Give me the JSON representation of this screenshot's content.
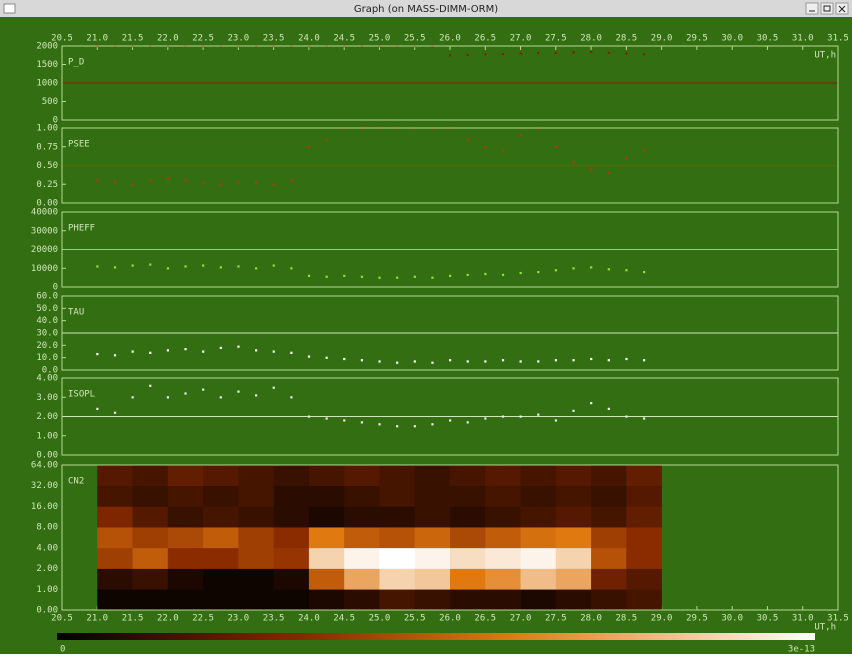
{
  "window": {
    "title": "Graph (on MASS-DIMM-ORM)"
  },
  "x_axis": {
    "label": "UT,h",
    "xlim": [
      20.5,
      31.5
    ],
    "xticks": [
      20.5,
      {
        "value": 21,
        "label": "21.0"
      },
      21.5,
      {
        "value": 22,
        "label": "22.0"
      },
      22.5,
      {
        "value": 23,
        "label": "23.0"
      },
      23.5,
      {
        "value": 24,
        "label": "24.0"
      },
      24.5,
      {
        "value": 25,
        "label": "25.0"
      },
      25.5,
      {
        "value": 26,
        "label": "26.0"
      },
      26.5,
      {
        "value": 27,
        "label": "27.0"
      },
      27.5,
      {
        "value": 28,
        "label": "28.0"
      },
      28.5,
      {
        "value": 29,
        "label": "29.0"
      },
      29.5,
      {
        "value": 30,
        "label": "30.0"
      },
      30.5,
      {
        "value": 31,
        "label": "31.0"
      },
      31.5
    ]
  },
  "chart_data": [
    {
      "type": "scatter",
      "name": "P_D",
      "color": "#8b1c00",
      "reference": 1000,
      "ylim": [
        0,
        2000
      ],
      "yticks": [
        0,
        500,
        1000,
        1500,
        2000
      ],
      "x": [
        21.0,
        21.25,
        21.5,
        21.75,
        22.0,
        22.25,
        22.5,
        22.75,
        23.0,
        23.25,
        23.5,
        23.75,
        24.0,
        24.25,
        24.5,
        24.75,
        25.0,
        25.25,
        25.5,
        25.75,
        26.0,
        26.25,
        26.5,
        26.75,
        27.0,
        27.25,
        27.5,
        27.75,
        28.0,
        28.25,
        28.5,
        28.75
      ],
      "values": [
        2000,
        2000,
        2000,
        2000,
        2000,
        2000,
        2000,
        2000,
        2000,
        2000,
        2000,
        2000,
        2000,
        2000,
        2000,
        2000,
        2000,
        2000,
        2000,
        2000,
        1750,
        1760,
        1780,
        1790,
        1800,
        1810,
        1820,
        1830,
        1840,
        1820,
        1800,
        1780
      ]
    },
    {
      "type": "scatter",
      "name": "PSEE",
      "color": "#c03400",
      "reference": 0.5,
      "ylim": [
        0,
        1
      ],
      "yticks": [
        {
          "value": 0,
          "label": "0.00"
        },
        0.25,
        {
          "value": 0.5,
          "label": "0.50"
        },
        0.75,
        {
          "value": 1,
          "label": "1.00"
        }
      ],
      "x": [
        21.0,
        21.25,
        21.5,
        21.75,
        22.0,
        22.25,
        22.5,
        22.75,
        23.0,
        23.25,
        23.5,
        23.75,
        24.0,
        24.25,
        24.5,
        24.75,
        25.0,
        25.25,
        25.5,
        25.75,
        26.0,
        26.25,
        26.5,
        26.75,
        27.0,
        27.25,
        27.5,
        27.75,
        28.0,
        28.25,
        28.5,
        28.75
      ],
      "values": [
        0.3,
        0.28,
        0.25,
        0.3,
        0.33,
        0.3,
        0.27,
        0.25,
        0.28,
        0.27,
        0.25,
        0.3,
        0.75,
        0.85,
        1.0,
        1.0,
        1.0,
        1.0,
        1.0,
        1.0,
        1.0,
        0.85,
        0.75,
        0.7,
        0.9,
        1.0,
        0.75,
        0.55,
        0.45,
        0.4,
        0.6,
        0.7
      ]
    },
    {
      "type": "scatter",
      "name": "PHEFF",
      "color": "#86e830",
      "reference": 20000,
      "ylim": [
        0,
        40000
      ],
      "yticks": [
        0,
        10000,
        20000,
        30000,
        40000
      ],
      "x": [
        21.0,
        21.25,
        21.5,
        21.75,
        22.0,
        22.25,
        22.5,
        22.75,
        23.0,
        23.25,
        23.5,
        23.75,
        24.0,
        24.25,
        24.5,
        24.75,
        25.0,
        25.25,
        25.5,
        25.75,
        26.0,
        26.25,
        26.5,
        26.75,
        27.0,
        27.25,
        27.5,
        27.75,
        28.0,
        28.25,
        28.5,
        28.75
      ],
      "values": [
        11000,
        10500,
        11500,
        12000,
        10000,
        11000,
        11500,
        10500,
        11000,
        10000,
        11500,
        10000,
        6000,
        5500,
        6000,
        5500,
        5000,
        5000,
        5500,
        5000,
        6000,
        6500,
        7000,
        6500,
        7500,
        8000,
        9000,
        10000,
        10500,
        9500,
        9000,
        8000
      ]
    },
    {
      "type": "scatter",
      "name": "TAU",
      "color": "#ffffff",
      "reference": 30,
      "ylim": [
        0,
        60
      ],
      "yticks": [
        {
          "value": 0,
          "label": "0.0"
        },
        {
          "value": 10,
          "label": "10.0"
        },
        {
          "value": 20,
          "label": "20.0"
        },
        {
          "value": 30,
          "label": "30.0"
        },
        {
          "value": 40,
          "label": "40.0"
        },
        {
          "value": 50,
          "label": "50.0"
        },
        {
          "value": 60,
          "label": "60.0"
        }
      ],
      "x": [
        21.0,
        21.25,
        21.5,
        21.75,
        22.0,
        22.25,
        22.5,
        22.75,
        23.0,
        23.25,
        23.5,
        23.75,
        24.0,
        24.25,
        24.5,
        24.75,
        25.0,
        25.25,
        25.5,
        25.75,
        26.0,
        26.25,
        26.5,
        26.75,
        27.0,
        27.25,
        27.5,
        27.75,
        28.0,
        28.25,
        28.5,
        28.75
      ],
      "values": [
        13,
        12,
        15,
        14,
        16,
        17,
        15,
        18,
        19,
        16,
        15,
        14,
        11,
        10,
        9,
        8,
        7,
        6,
        7,
        6,
        8,
        7,
        7,
        8,
        7,
        7,
        8,
        8,
        9,
        8,
        9,
        8
      ]
    },
    {
      "type": "scatter",
      "name": "ISOPL",
      "color": "#ececec",
      "reference": 2,
      "ylim": [
        0,
        4
      ],
      "yticks": [
        {
          "value": 0,
          "label": "0.00"
        },
        {
          "value": 1,
          "label": "1.00"
        },
        {
          "value": 2,
          "label": "2.00"
        },
        {
          "value": 3,
          "label": "3.00"
        },
        {
          "value": 4,
          "label": "4.00"
        }
      ],
      "x": [
        21.0,
        21.25,
        21.5,
        21.75,
        22.0,
        22.25,
        22.5,
        22.75,
        23.0,
        23.25,
        23.5,
        23.75,
        24.0,
        24.25,
        24.5,
        24.75,
        25.0,
        25.25,
        25.5,
        25.75,
        26.0,
        26.25,
        26.5,
        26.75,
        27.0,
        27.25,
        27.5,
        27.75,
        28.0,
        28.25,
        28.5,
        28.75
      ],
      "values": [
        2.4,
        2.2,
        3.0,
        3.6,
        3.0,
        3.2,
        3.4,
        3.0,
        3.3,
        3.1,
        3.5,
        3.0,
        2.0,
        1.9,
        1.8,
        1.7,
        1.6,
        1.5,
        1.5,
        1.6,
        1.8,
        1.7,
        1.9,
        2.0,
        2.0,
        2.1,
        1.8,
        2.3,
        2.7,
        2.4,
        2.0,
        1.9
      ]
    },
    {
      "type": "heatmap",
      "name": "CN2",
      "ylabels": [
        "0.00",
        "1.00",
        "2.00",
        "4.00",
        "8.00",
        "16.00",
        "32.00",
        "64.00"
      ],
      "x_edges": [
        21.0,
        21.5,
        22.0,
        22.5,
        23.0,
        23.5,
        24.0,
        24.5,
        25.0,
        25.5,
        26.0,
        26.5,
        27.0,
        27.5,
        28.0,
        28.5,
        29.0
      ],
      "z": [
        [
          1e-14,
          1e-14,
          1e-14,
          1e-14,
          1e-14,
          1e-14,
          2e-14,
          3e-14,
          5e-14,
          4e-14,
          3e-14,
          3e-14,
          2e-14,
          3e-14,
          4e-14,
          5e-14
        ],
        [
          3e-14,
          4e-14,
          2e-14,
          1e-14,
          1e-14,
          2e-14,
          1.5e-13,
          2.2e-13,
          2.6e-13,
          2.5e-13,
          1.8e-13,
          2e-13,
          2.4e-13,
          2.2e-13,
          8e-14,
          6e-14
        ],
        [
          1.2e-13,
          1.5e-13,
          1e-13,
          1e-13,
          1.2e-13,
          1.1e-13,
          2.6e-13,
          2.9e-13,
          3e-13,
          2.9e-13,
          2.7e-13,
          2.8e-13,
          2.9e-13,
          2.6e-13,
          1.4e-13,
          1e-13
        ],
        [
          1.4e-13,
          1.2e-13,
          1.3e-13,
          1.5e-13,
          1.2e-13,
          1e-13,
          1.8e-13,
          1.5e-13,
          1.4e-13,
          1.6e-13,
          1.3e-13,
          1.5e-13,
          1.7e-13,
          1.8e-13,
          1.2e-13,
          1e-13
        ],
        [
          9e-14,
          6e-14,
          4e-14,
          5e-14,
          4e-14,
          3e-14,
          2e-14,
          3e-14,
          3e-14,
          4e-14,
          3e-14,
          4e-14,
          5e-14,
          6e-14,
          5e-14,
          7e-14
        ],
        [
          5e-14,
          4e-14,
          5e-14,
          4e-14,
          5e-14,
          3e-14,
          3e-14,
          4e-14,
          5e-14,
          4e-14,
          4e-14,
          5e-14,
          4e-14,
          5e-14,
          4e-14,
          6e-14
        ],
        [
          6e-14,
          5e-14,
          7e-14,
          6e-14,
          5e-14,
          4e-14,
          5e-14,
          6e-14,
          5e-14,
          4e-14,
          5e-14,
          6e-14,
          5e-14,
          6e-14,
          5e-14,
          7e-14
        ]
      ],
      "clim": [
        0,
        3e-13
      ]
    }
  ]
}
